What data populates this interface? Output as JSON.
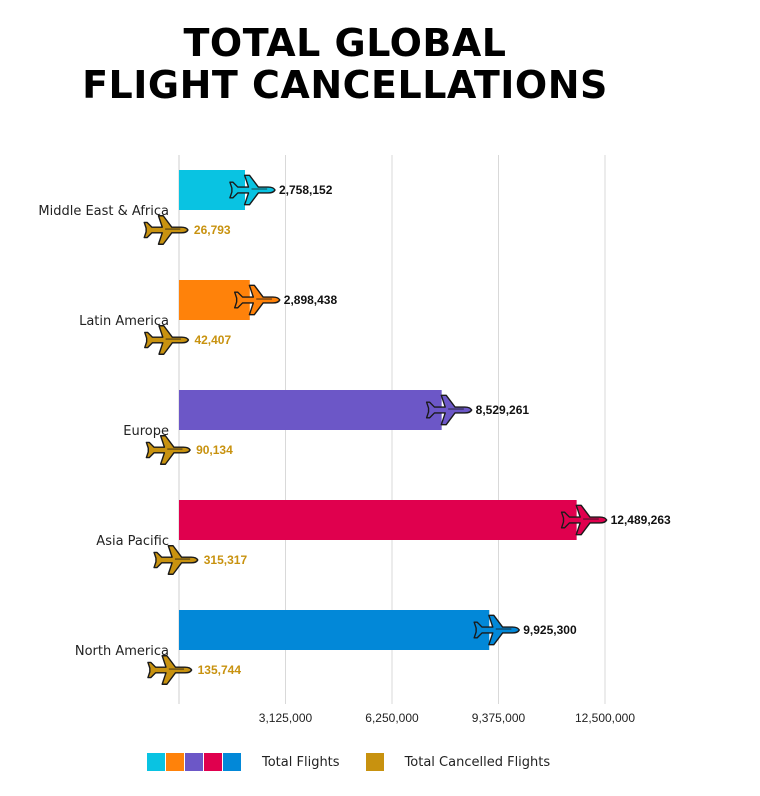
{
  "chart_data": {
    "type": "bar",
    "title": [
      "TOTAL GLOBAL",
      "FLIGHT CANCELLATIONS"
    ],
    "categories": [
      "Middle East & Africa",
      "Latin America",
      "Europe",
      "Asia Pacific",
      "North America"
    ],
    "series": [
      {
        "name": "Total Flights",
        "values": [
          2758152,
          2898438,
          8529261,
          12489263,
          9925300
        ],
        "labels": [
          "2,758,152",
          "2,898,438",
          "8,529,261",
          "12,489,263",
          "9,925,300"
        ],
        "colors": [
          "#09c3e2",
          "#ff820a",
          "#6c57c7",
          "#e0004e",
          "#0288d8"
        ]
      },
      {
        "name": "Total Cancelled Flights",
        "values": [
          26793,
          42407,
          90134,
          315317,
          135744
        ],
        "labels": [
          "26,793",
          "42,407",
          "90,134",
          "315,317",
          "135,744"
        ],
        "color": "#c8920f"
      }
    ],
    "xlim": [
      0,
      12500000
    ],
    "xticks": [
      3125000,
      6250000,
      9375000,
      12500000
    ],
    "xtick_labels": [
      "3,125,000",
      "6,250,000",
      "9,375,000",
      "12,500,000"
    ],
    "grid": true,
    "legend_position": "bottom"
  },
  "legend": {
    "total_label": "Total Flights",
    "cancelled_label": "Total Cancelled Flights"
  }
}
